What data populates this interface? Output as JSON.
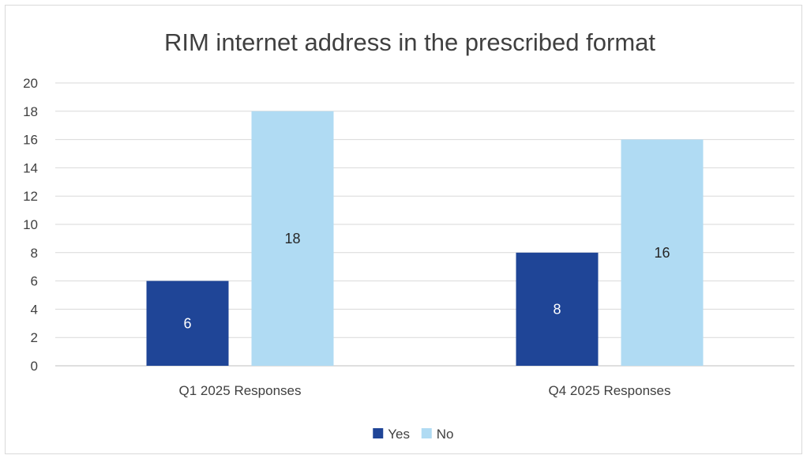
{
  "chart_data": {
    "type": "bar",
    "title": "RIM internet address in the prescribed format",
    "categories": [
      "Q1 2025 Responses",
      "Q4 2025 Responses"
    ],
    "series": [
      {
        "name": "Yes",
        "values": [
          6,
          8
        ],
        "color": "#1f4597",
        "label_color": "#ffffff"
      },
      {
        "name": "No",
        "values": [
          18,
          16
        ],
        "color": "#b0dbf3",
        "label_color": "#262626"
      }
    ],
    "ylim": [
      0,
      20
    ],
    "yticks": [
      0,
      2,
      4,
      6,
      8,
      10,
      12,
      14,
      16,
      18,
      20
    ],
    "grid": true,
    "legend_position": "bottom"
  }
}
